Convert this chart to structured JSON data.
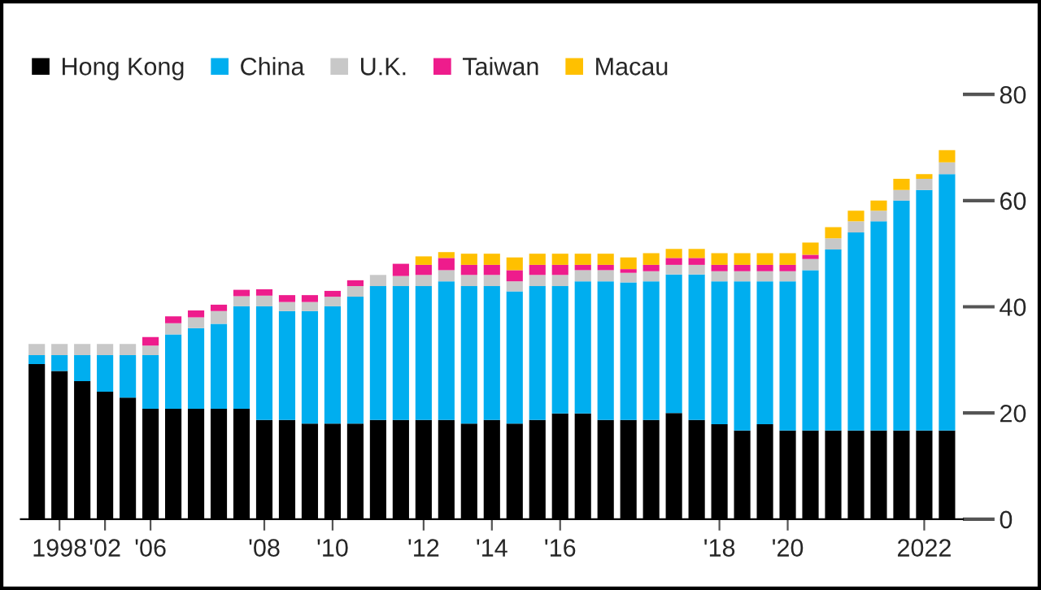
{
  "chart_data": {
    "type": "bar",
    "stacked": true,
    "legend": "top left",
    "grid": false,
    "categories": [
      null,
      "1998",
      null,
      "'02",
      null,
      "'06",
      null,
      null,
      null,
      null,
      "'08",
      null,
      null,
      "'10",
      null,
      null,
      null,
      "'12",
      null,
      null,
      "'14",
      null,
      null,
      "'16",
      null,
      null,
      null,
      null,
      null,
      null,
      "'18",
      null,
      null,
      "'20",
      null,
      null,
      null,
      null,
      null,
      "2022",
      null
    ],
    "ylim": [
      0,
      80
    ],
    "yticks": [
      0,
      20,
      40,
      60,
      80
    ],
    "series": [
      {
        "name": "Hong Kong",
        "color": "#000000",
        "values": [
          29.2,
          27.9,
          26.0,
          24.0,
          22.9,
          20.8,
          20.8,
          20.8,
          20.8,
          20.8,
          18.7,
          18.7,
          18.0,
          18.0,
          18.0,
          18.7,
          18.7,
          18.7,
          18.7,
          18.0,
          18.7,
          18.0,
          18.7,
          19.9,
          19.9,
          18.7,
          18.7,
          18.7,
          20.0,
          18.7,
          17.9,
          16.7,
          17.9,
          16.7,
          16.7,
          16.7,
          16.7,
          16.7,
          16.7,
          16.7,
          16.7
        ]
      },
      {
        "name": "China",
        "color": "#00aeef",
        "values": [
          1.7,
          3.0,
          4.9,
          6.9,
          8.0,
          10.1,
          14.0,
          15.2,
          16.0,
          19.3,
          21.4,
          20.5,
          21.2,
          22.1,
          23.9,
          25.2,
          25.2,
          25.2,
          26.1,
          25.9,
          25.2,
          24.9,
          25.2,
          24.0,
          24.9,
          26.1,
          25.9,
          26.1,
          26.1,
          27.4,
          26.9,
          28.1,
          26.9,
          28.1,
          30.2,
          34.1,
          37.3,
          39.4,
          43.3,
          45.3,
          48.3
        ]
      },
      {
        "name": "U.K.",
        "color": "#c8c8c8",
        "values": [
          2.1,
          2.1,
          2.1,
          2.1,
          2.1,
          1.8,
          2.1,
          2.0,
          2.4,
          1.9,
          2.0,
          1.7,
          1.7,
          1.8,
          2.0,
          2.1,
          1.9,
          2.1,
          2.1,
          2.1,
          2.1,
          1.9,
          2.1,
          2.1,
          2.1,
          2.1,
          1.8,
          1.9,
          1.8,
          1.8,
          1.9,
          1.9,
          1.9,
          1.9,
          2.1,
          2.1,
          2.1,
          2.0,
          2.0,
          2.1,
          2.2
        ]
      },
      {
        "name": "Taiwan",
        "color": "#ee1c8c",
        "values": [
          null,
          null,
          null,
          null,
          null,
          1.6,
          1.3,
          1.3,
          1.2,
          1.2,
          1.2,
          1.3,
          1.3,
          1.1,
          1.1,
          null,
          2.3,
          1.9,
          2.3,
          1.9,
          1.9,
          2.1,
          1.9,
          1.9,
          1.0,
          1.0,
          0.7,
          1.2,
          1.3,
          1.3,
          1.2,
          1.2,
          1.2,
          1.2,
          0.8,
          null,
          null,
          null,
          null,
          null,
          null
        ]
      },
      {
        "name": "Macau",
        "color": "#ffc000",
        "values": [
          null,
          null,
          null,
          null,
          null,
          null,
          null,
          null,
          null,
          null,
          null,
          null,
          null,
          null,
          null,
          null,
          null,
          1.6,
          1.1,
          2.1,
          2.1,
          2.4,
          2.1,
          2.1,
          2.1,
          2.1,
          2.2,
          2.2,
          1.7,
          1.7,
          2.2,
          2.2,
          2.2,
          2.2,
          2.3,
          2.1,
          2.0,
          1.9,
          2.1,
          0.9,
          2.3
        ]
      }
    ]
  }
}
